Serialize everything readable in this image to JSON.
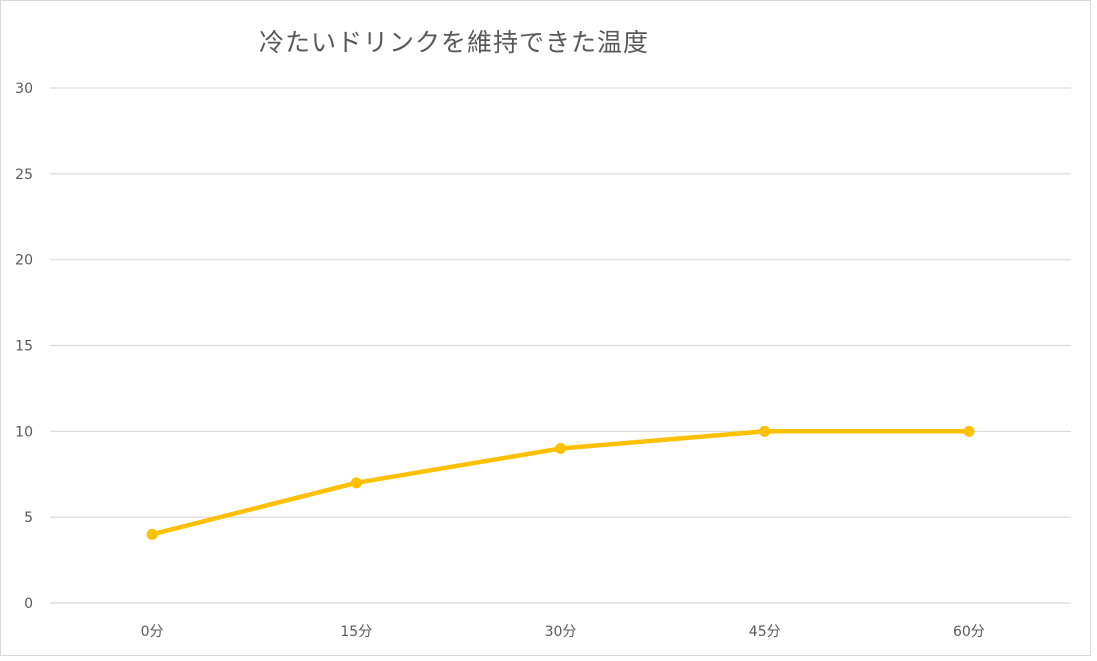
{
  "chart_data": {
    "type": "line",
    "title": "冷たいドリンクを維持できた温度",
    "categories": [
      "0分",
      "15分",
      "30分",
      "45分",
      "60分"
    ],
    "series": [
      {
        "values": [
          4,
          7,
          9,
          10,
          10
        ]
      }
    ],
    "ylim": [
      0,
      30
    ],
    "yticks": [
      0,
      5,
      10,
      15,
      20,
      25,
      30
    ],
    "grid": true,
    "legend": "none",
    "colors": {
      "line": "#FFC000",
      "grid": "#d9d9d9",
      "text": "#595959"
    }
  }
}
